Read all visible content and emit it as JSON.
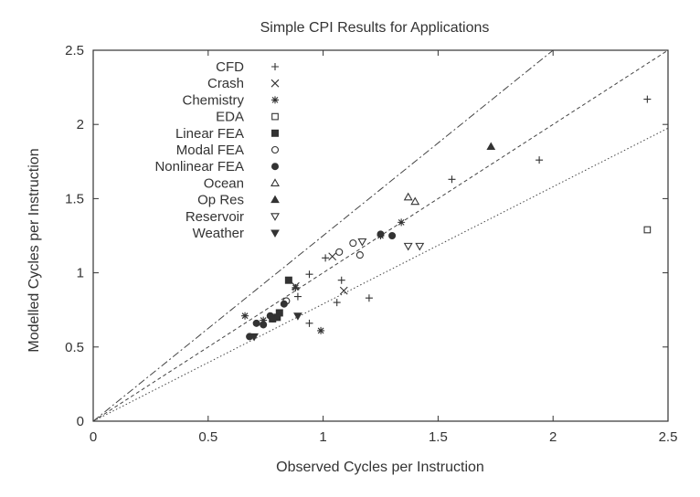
{
  "chart_data": {
    "type": "scatter",
    "title": "Simple CPI Results for Applications",
    "xlabel": "Observed Cycles per Instruction",
    "ylabel": "Modelled Cycles per Instruction",
    "xlim": [
      0,
      2.5
    ],
    "ylim": [
      0,
      2.5
    ],
    "xticks": [
      "0",
      "0.5",
      "1",
      "1.5",
      "2",
      "2.5"
    ],
    "yticks": [
      "0",
      "0.5",
      "1",
      "1.5",
      "2",
      "2.5"
    ],
    "grid": false,
    "legend_position": "top-left",
    "reference_lines": [
      {
        "slope": 1.25,
        "style": "dash-dot"
      },
      {
        "slope": 1.0,
        "style": "dashed"
      },
      {
        "slope": 0.79,
        "style": "dotted"
      }
    ],
    "series": [
      {
        "name": "CFD",
        "marker": "plus",
        "points": [
          [
            1.01,
            1.1
          ],
          [
            0.94,
            0.99
          ],
          [
            0.89,
            0.84
          ],
          [
            0.94,
            0.66
          ],
          [
            1.06,
            0.8
          ],
          [
            1.08,
            0.95
          ],
          [
            1.2,
            0.83
          ],
          [
            1.56,
            1.63
          ],
          [
            1.94,
            1.76
          ],
          [
            2.41,
            2.17
          ]
        ]
      },
      {
        "name": "Crash",
        "marker": "cross",
        "points": [
          [
            1.04,
            1.11
          ],
          [
            1.09,
            0.88
          ],
          [
            0.88,
            0.91
          ]
        ]
      },
      {
        "name": "Chemistry",
        "marker": "star",
        "points": [
          [
            0.66,
            0.71
          ],
          [
            0.74,
            0.68
          ],
          [
            0.88,
            0.9
          ],
          [
            0.99,
            0.61
          ],
          [
            1.34,
            1.34
          ],
          [
            1.25,
            1.25
          ]
        ]
      },
      {
        "name": "EDA",
        "marker": "square-open",
        "points": [
          [
            2.41,
            1.29
          ]
        ]
      },
      {
        "name": "Linear FEA",
        "marker": "square-filled",
        "points": [
          [
            0.85,
            0.95
          ],
          [
            0.81,
            0.73
          ],
          [
            0.78,
            0.69
          ],
          [
            0.8,
            0.7
          ]
        ]
      },
      {
        "name": "Modal FEA",
        "marker": "circle-open",
        "points": [
          [
            1.07,
            1.14
          ],
          [
            1.13,
            1.2
          ],
          [
            1.16,
            1.12
          ],
          [
            0.84,
            0.81
          ]
        ]
      },
      {
        "name": "Nonlinear FEA",
        "marker": "circle-filled",
        "points": [
          [
            0.68,
            0.57
          ],
          [
            0.71,
            0.66
          ],
          [
            0.74,
            0.65
          ],
          [
            0.77,
            0.71
          ],
          [
            0.78,
            0.69
          ],
          [
            0.83,
            0.79
          ],
          [
            1.25,
            1.26
          ],
          [
            1.3,
            1.25
          ]
        ]
      },
      {
        "name": "Ocean",
        "marker": "triangle-up-open",
        "points": [
          [
            1.37,
            1.51
          ],
          [
            1.4,
            1.48
          ]
        ]
      },
      {
        "name": "Op Res",
        "marker": "triangle-up-filled",
        "points": [
          [
            1.73,
            1.85
          ]
        ]
      },
      {
        "name": "Reservoir",
        "marker": "triangle-down-open",
        "points": [
          [
            1.17,
            1.21
          ],
          [
            1.37,
            1.18
          ],
          [
            1.42,
            1.18
          ]
        ]
      },
      {
        "name": "Weather",
        "marker": "triangle-down-filled",
        "points": [
          [
            0.7,
            0.57
          ],
          [
            0.89,
            0.71
          ]
        ]
      }
    ]
  }
}
